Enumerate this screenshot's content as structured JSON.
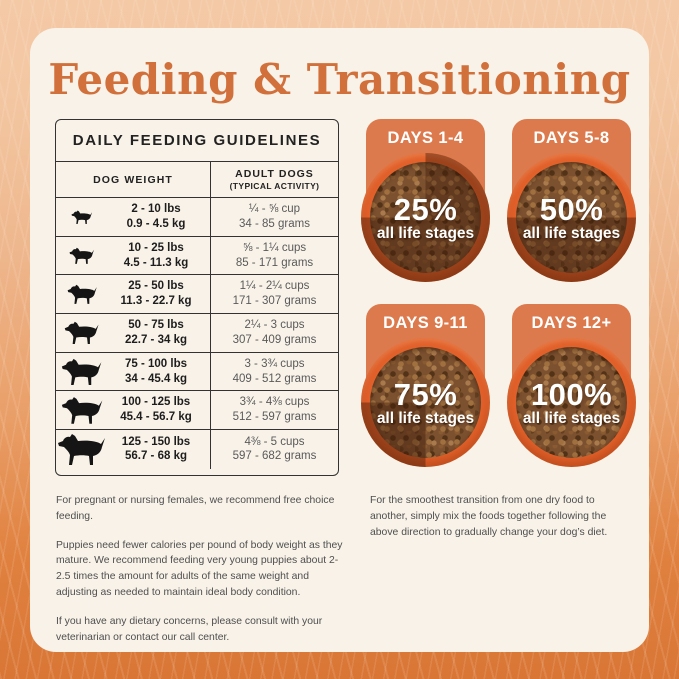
{
  "title": "Feeding & Transitioning",
  "colors": {
    "title_orange": "#d2703b",
    "badge_orange": "#dd7a4d",
    "bowl_orange": "#e2602a",
    "card_cream": "#f8f2e8",
    "overlay_dark": "rgba(62,26,8,0.42)"
  },
  "table": {
    "title": "DAILY FEEDING GUIDELINES",
    "col1_header": "DOG WEIGHT",
    "col2_header_line1": "ADULT DOGS",
    "col2_header_line2": "(TYPICAL ACTIVITY)",
    "rows": [
      {
        "icon": "dog-silhouette",
        "icon_size": 14,
        "lbs": "2 - 10 lbs",
        "kg": "0.9 - 4.5 kg",
        "cups": "¼ - ⅝ cup",
        "grams": "34 - 85 grams"
      },
      {
        "icon": "dog-silhouette",
        "icon_size": 17,
        "lbs": "10 - 25 lbs",
        "kg": "4.5 - 11.3 kg",
        "cups": "⅝ - 1¼ cups",
        "grams": "85 - 171 grams"
      },
      {
        "icon": "dog-silhouette",
        "icon_size": 20,
        "lbs": "25 - 50 lbs",
        "kg": "11.3 - 22.7 kg",
        "cups": "1¼ - 2¼ cups",
        "grams": "171 - 307 grams"
      },
      {
        "icon": "dog-silhouette",
        "icon_size": 23,
        "lbs": "50 - 75 lbs",
        "kg": "22.7 - 34 kg",
        "cups": "2¼ - 3 cups",
        "grams": "307 - 409 grams"
      },
      {
        "icon": "dog-silhouette",
        "icon_size": 27,
        "lbs": "75 - 100 lbs",
        "kg": "34 - 45.4 kg",
        "cups": "3 - 3¾ cups",
        "grams": "409 - 512 grams"
      },
      {
        "icon": "dog-silhouette",
        "icon_size": 28,
        "lbs": "100 - 125 lbs",
        "kg": "45.4 - 56.7 kg",
        "cups": "3¾ - 4⅜ cups",
        "grams": "512 - 597 grams"
      },
      {
        "icon": "dog-silhouette",
        "icon_size": 32,
        "lbs": "125 - 150 lbs",
        "kg": "56.7 - 68 kg",
        "cups": "4⅜ - 5 cups",
        "grams": "597 - 682 grams"
      }
    ]
  },
  "transition": {
    "bowls": [
      {
        "label": "DAYS 1-4",
        "pct": "25%",
        "sub": "all life stages",
        "dark_start_deg": 0,
        "dark_end_deg": 270
      },
      {
        "label": "DAYS 5-8",
        "pct": "50%",
        "sub": "all life stages",
        "dark_start_deg": 90,
        "dark_end_deg": 270
      },
      {
        "label": "DAYS 9-11",
        "pct": "75%",
        "sub": "all life stages",
        "dark_start_deg": 180,
        "dark_end_deg": 270
      },
      {
        "label": "DAYS 12+",
        "pct": "100%",
        "sub": "all life stages",
        "dark_start_deg": 0,
        "dark_end_deg": 0
      }
    ]
  },
  "notes_left": [
    "For pregnant or nursing females, we recommend free choice feeding.",
    "Puppies need fewer calories per pound of body weight as they mature. We recommend feeding very young puppies about 2-2.5 times the amount for adults of the same weight and adjusting as needed to maintain ideal body condition.",
    "If you have any dietary concerns, please consult with your veterinarian or contact our call center."
  ],
  "notes_right": "For the smoothest transition from one dry food to another, simply mix the foods together following the above direction to gradually change your dog’s diet."
}
